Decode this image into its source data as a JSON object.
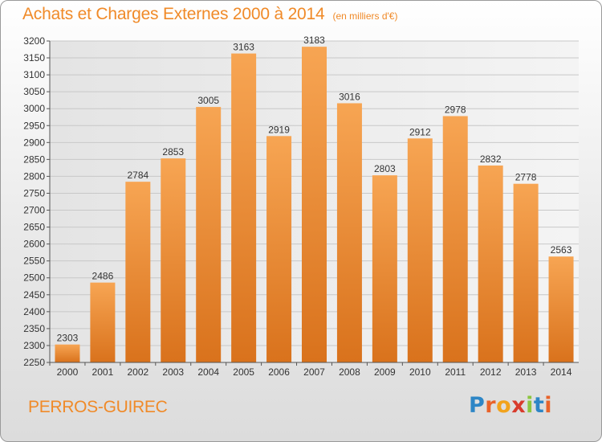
{
  "chart_data": {
    "type": "bar",
    "title": "Achats et Charges Externes 2000 à 2014",
    "subtitle": "(en milliers d'€)",
    "categories": [
      "2000",
      "2001",
      "2002",
      "2003",
      "2004",
      "2005",
      "2006",
      "2007",
      "2008",
      "2009",
      "2010",
      "2011",
      "2012",
      "2013",
      "2014"
    ],
    "values": [
      2303,
      2486,
      2784,
      2853,
      3005,
      3163,
      2919,
      3183,
      3016,
      2803,
      2912,
      2978,
      2832,
      2778,
      2563
    ],
    "ylim": [
      2250,
      3200
    ],
    "ytick_step": 50,
    "grid": true,
    "xlabel": "",
    "ylabel": ""
  },
  "footer": {
    "town": "PERROS-GUIREC",
    "logo_letters": [
      "P",
      "r",
      "o",
      "x",
      "i",
      "t",
      "i"
    ],
    "logo_colors": [
      "#2d86c6",
      "#e9632a",
      "#f2a31c",
      "#d83b2c",
      "#8cc63f",
      "#2d86c6",
      "#e9632a"
    ]
  },
  "colors": {
    "bar_light": "#f7a553",
    "bar_dark": "#d9721c",
    "title": "#f08a28",
    "grid": "#c8c8c8",
    "text": "#333333"
  }
}
